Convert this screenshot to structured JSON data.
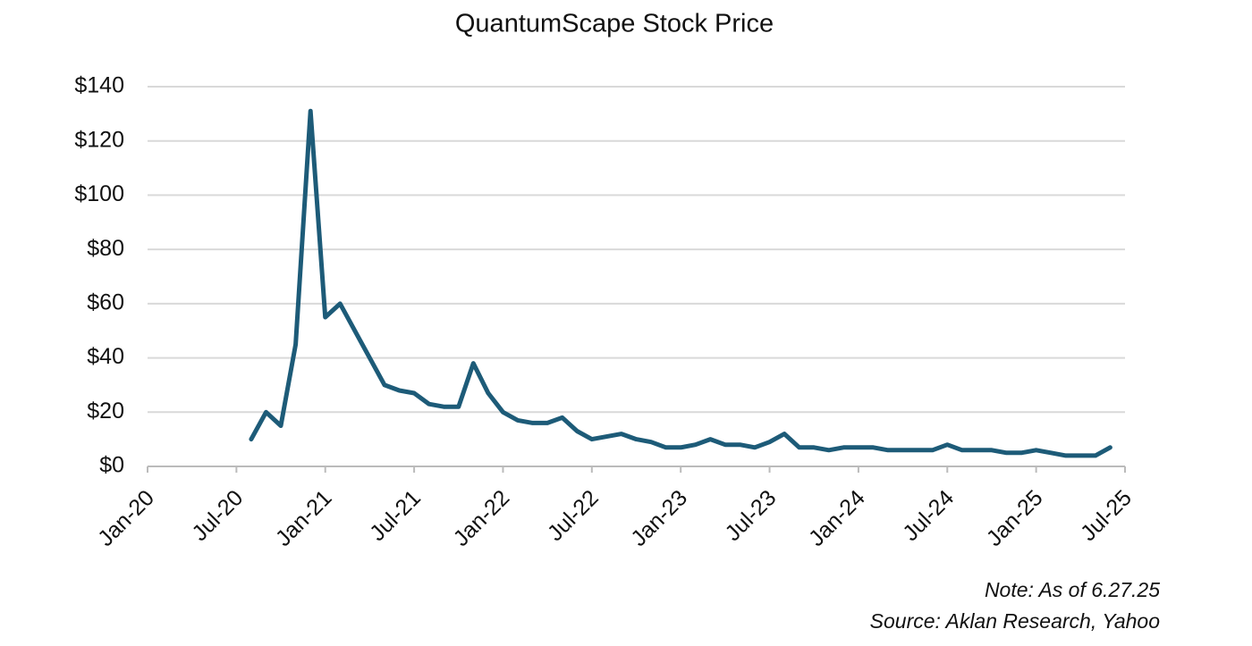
{
  "chart_data": {
    "type": "line",
    "title": "QuantumScape Stock Price",
    "notes": [
      "Note: As of 6.27.25",
      "Source: Aklan Research, Yahoo"
    ],
    "x": [
      "2020-08",
      "2020-09",
      "2020-10",
      "2020-11",
      "2020-12",
      "2021-01",
      "2021-02",
      "2021-03",
      "2021-04",
      "2021-05",
      "2021-06",
      "2021-07",
      "2021-08",
      "2021-09",
      "2021-10",
      "2021-11",
      "2021-12",
      "2022-01",
      "2022-02",
      "2022-03",
      "2022-04",
      "2022-05",
      "2022-06",
      "2022-07",
      "2022-08",
      "2022-09",
      "2022-10",
      "2022-11",
      "2022-12",
      "2023-01",
      "2023-02",
      "2023-03",
      "2023-04",
      "2023-05",
      "2023-06",
      "2023-07",
      "2023-08",
      "2023-09",
      "2023-10",
      "2023-11",
      "2023-12",
      "2024-01",
      "2024-02",
      "2024-03",
      "2024-04",
      "2024-05",
      "2024-06",
      "2024-07",
      "2024-08",
      "2024-09",
      "2024-10",
      "2024-11",
      "2024-12",
      "2025-01",
      "2025-02",
      "2025-03",
      "2025-04",
      "2025-05",
      "2025-06"
    ],
    "values": [
      10,
      20,
      15,
      45,
      131,
      55,
      60,
      50,
      40,
      30,
      28,
      27,
      23,
      22,
      22,
      38,
      27,
      20,
      17,
      16,
      16,
      18,
      13,
      10,
      11,
      12,
      10,
      9,
      7,
      7,
      8,
      10,
      8,
      8,
      7,
      9,
      12,
      7,
      7,
      6,
      7,
      7,
      7,
      6,
      6,
      6,
      6,
      8,
      6,
      6,
      6,
      5,
      5,
      6,
      5,
      4,
      4,
      4,
      7
    ],
    "color": "#1d5b78",
    "xlim": [
      "2020-01",
      "2025-07"
    ],
    "xticks": [
      {
        "value": "2020-01",
        "label": "Jan-20"
      },
      {
        "value": "2020-07",
        "label": "Jul-20"
      },
      {
        "value": "2021-01",
        "label": "Jan-21"
      },
      {
        "value": "2021-07",
        "label": "Jul-21"
      },
      {
        "value": "2022-01",
        "label": "Jan-22"
      },
      {
        "value": "2022-07",
        "label": "Jul-22"
      },
      {
        "value": "2023-01",
        "label": "Jan-23"
      },
      {
        "value": "2023-07",
        "label": "Jul-23"
      },
      {
        "value": "2024-01",
        "label": "Jan-24"
      },
      {
        "value": "2024-07",
        "label": "Jul-24"
      },
      {
        "value": "2025-01",
        "label": "Jan-25"
      },
      {
        "value": "2025-07",
        "label": "Jul-25"
      }
    ],
    "ylim": [
      0,
      140
    ],
    "yticks": [
      {
        "value": 0,
        "label": "$0"
      },
      {
        "value": 20,
        "label": "$20"
      },
      {
        "value": 40,
        "label": "$40"
      },
      {
        "value": 60,
        "label": "$60"
      },
      {
        "value": 80,
        "label": "$80"
      },
      {
        "value": 100,
        "label": "$100"
      },
      {
        "value": 120,
        "label": "$120"
      },
      {
        "value": 140,
        "label": "$140"
      }
    ],
    "grid": true
  }
}
